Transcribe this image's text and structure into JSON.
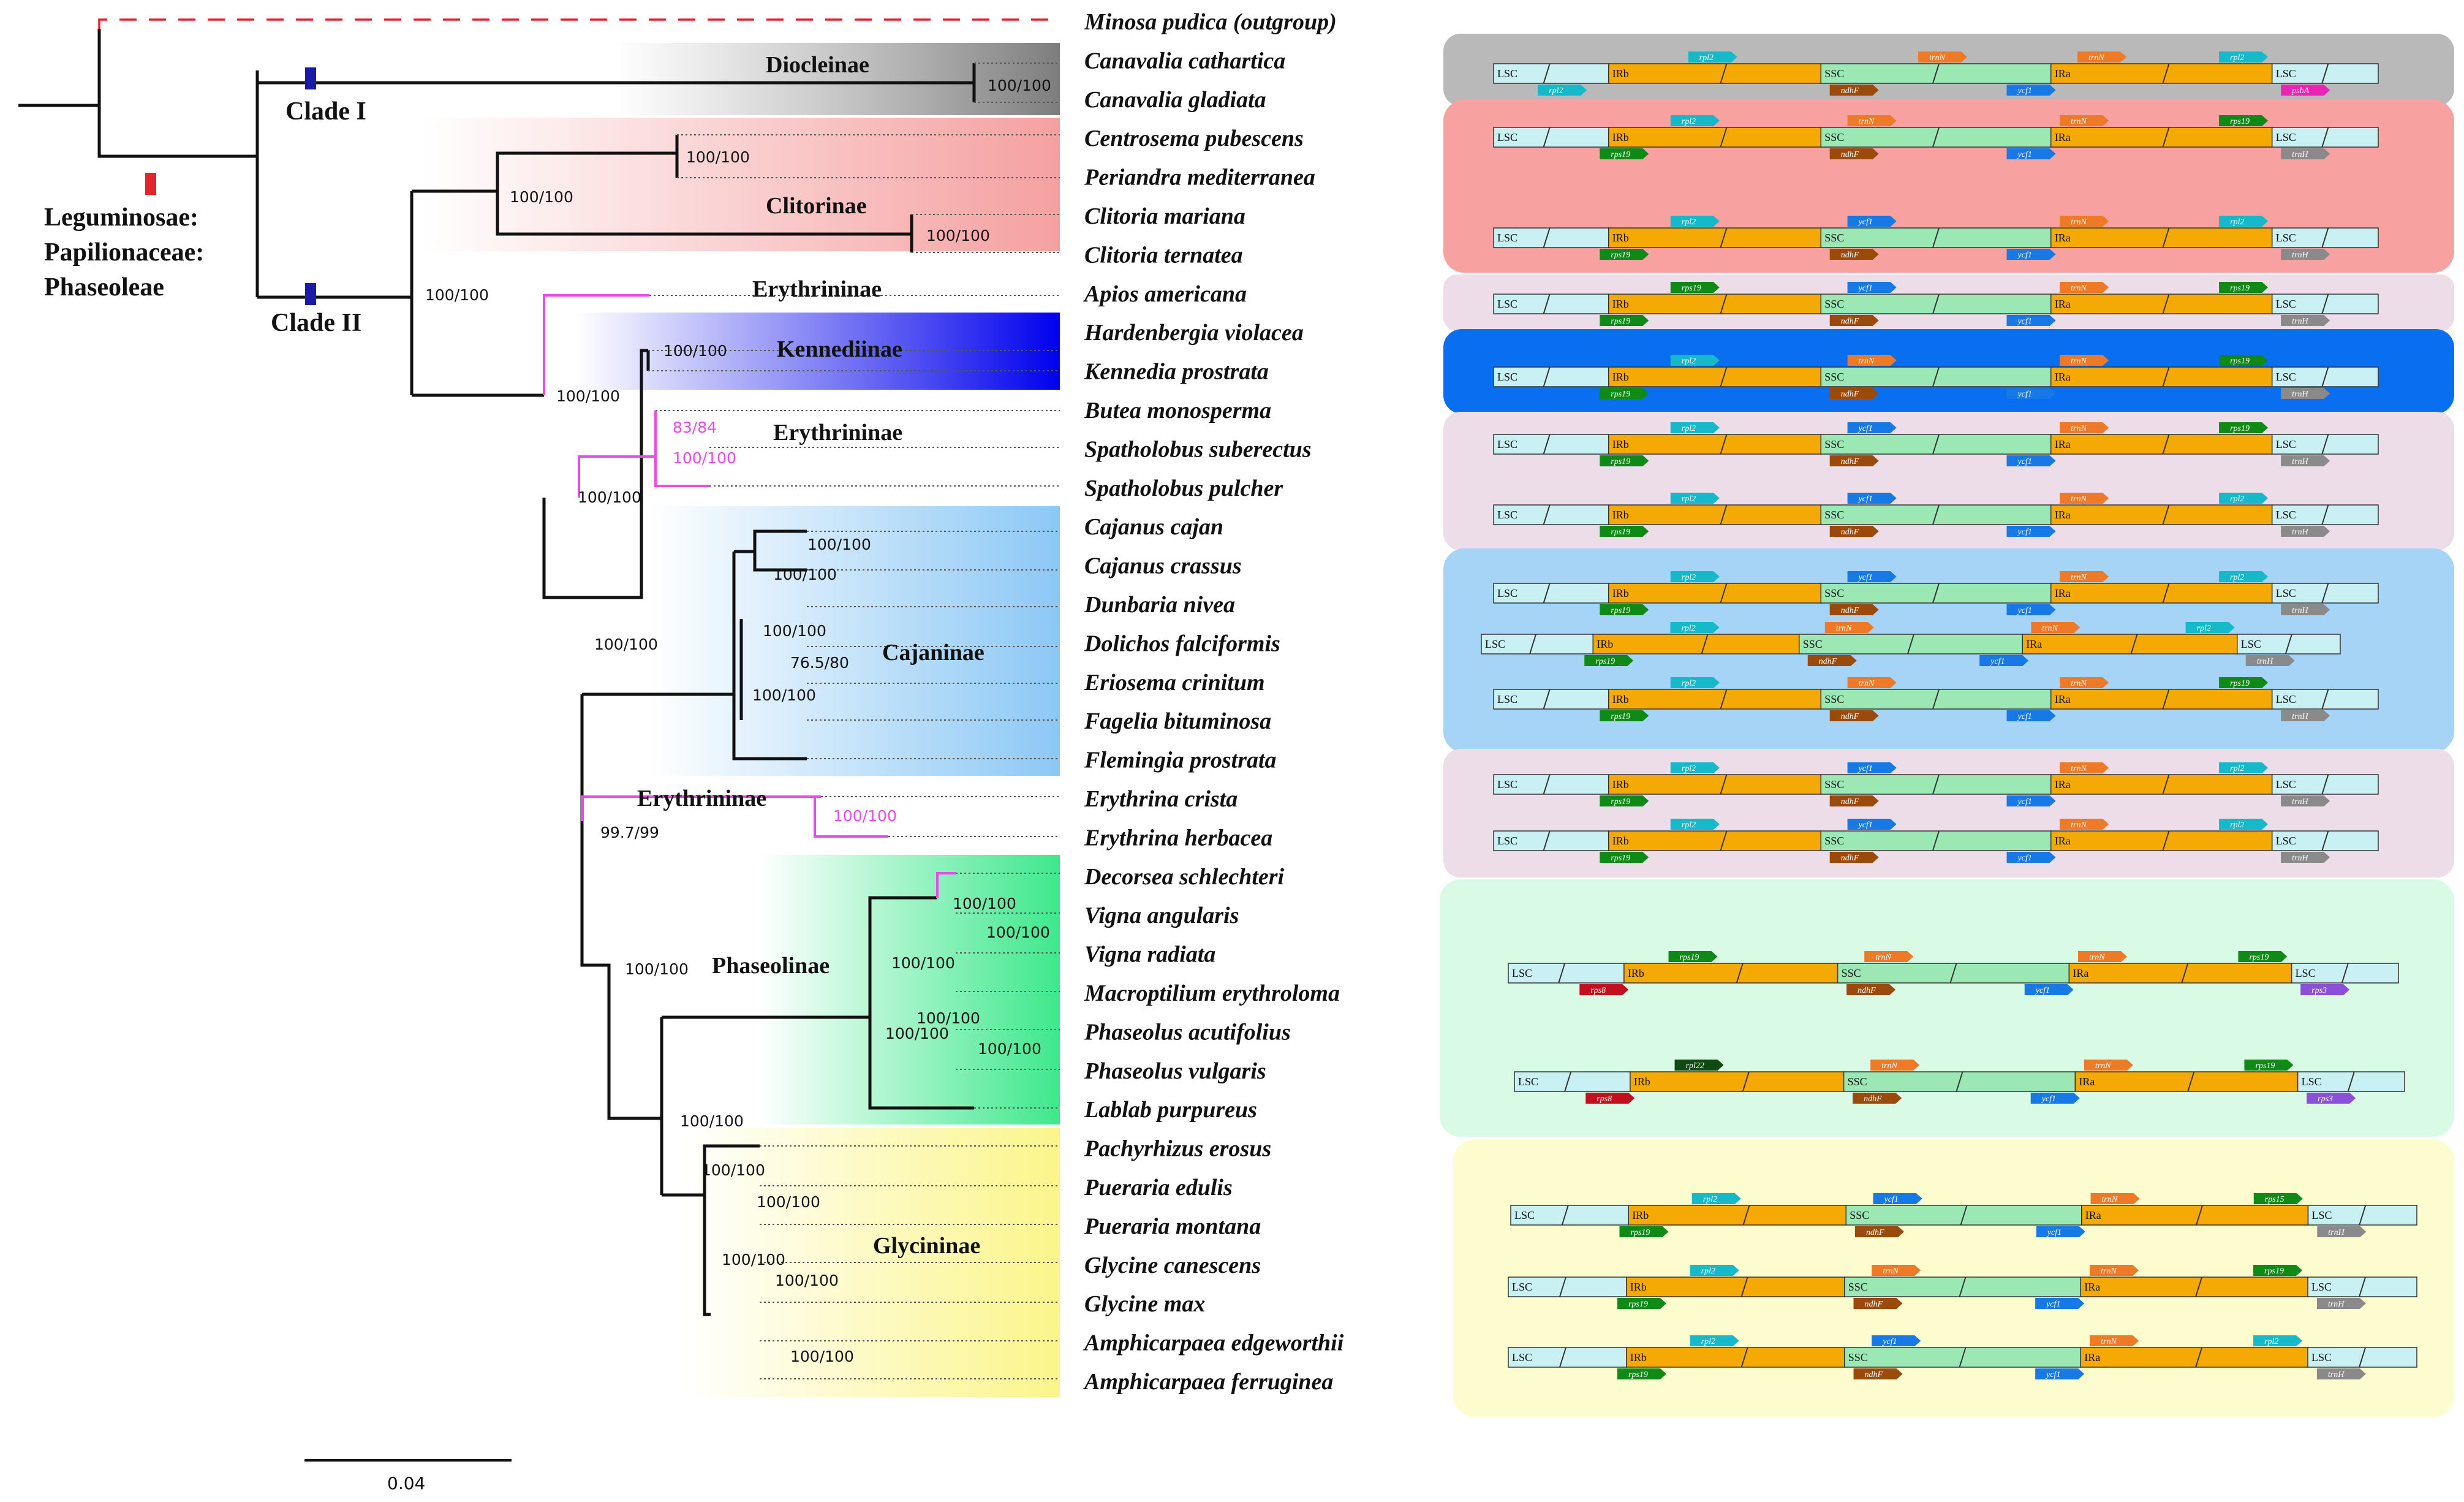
{
  "taxa": [
    "Minosa pudica (outgroup)",
    "Canavalia cathartica",
    "Canavalia gladiata",
    "Centrosema pubescens",
    "Periandra mediterranea",
    "Clitoria mariana",
    "Clitoria ternatea",
    "Apios americana",
    "Hardenbergia violacea",
    "Kennedia prostrata",
    "Butea monosperma",
    "Spatholobus suberectus",
    "Spatholobus pulcher",
    "Cajanus cajan",
    "Cajanus crassus",
    "Dunbaria nivea",
    "Dolichos falciformis",
    "Eriosema crinitum",
    "Fagelia bituminosa",
    "Flemingia prostrata",
    "Erythrina crista",
    "Erythrina herbacea",
    "Decorsea schlechteri",
    "Vigna angularis",
    "Vigna radiata",
    "Macroptilium erythroloma",
    "Phaseolus acutifolius",
    "Phaseolus vulgaris",
    "Lablab purpureus",
    "Pachyrhizus erosus",
    "Pueraria edulis",
    "Pueraria montana",
    "Glycine canescens",
    "Glycine max",
    "Amphicarpaea edgeworthii",
    "Amphicarpaea ferruginea"
  ],
  "root_label": {
    "line1": "Leguminosae:",
    "line2": "Papilionaceae:",
    "line3": "Phaseoleae"
  },
  "clades": {
    "clade1": "Clade I",
    "clade2": "Clade II"
  },
  "subtribes": {
    "diocleinae": "Diocleinae",
    "clitorinae": "Clitorinae",
    "erythrininae": "Erythrininae",
    "kennediinae": "Kennediinae",
    "cajaninae": "Cajaninae",
    "phaseolinae": "Phaseolinae",
    "glycininae": "Glycininae"
  },
  "supports": {
    "s1": "100/100",
    "s2": "100/100",
    "s3": "100/100",
    "s4": "100/100",
    "s5": "100/100",
    "s6": "100/100",
    "s7": "100/100",
    "s8": "83/84",
    "s9": "100/100",
    "s10": "100/100",
    "s11": "100/100",
    "s12": "100/100",
    "s13": "100/100",
    "s14": "100/100",
    "s15": "76.5/80",
    "s16": "100/100",
    "s17": "99.7/99",
    "s18": "100/100",
    "s19": "100/100",
    "s20": "100/100",
    "s21": "100/100",
    "s22": "100/100",
    "s23": "100/100",
    "s24": "100/100",
    "s25": "100/100",
    "s26": "100/100",
    "s27": "100/100",
    "s28": "100/100",
    "s29": "100/100",
    "s30": "100/100",
    "s31": "100/100"
  },
  "scale_bar": "0.04",
  "regions": {
    "lsc": "LSC",
    "irb": "IRb",
    "ssc": "SSC",
    "ira": "IRa"
  },
  "genes": {
    "rps19": "rps19",
    "rpl2": "rpl2",
    "trnN": "trnN",
    "ndhF": "ndhF",
    "ycf1": "ycf1",
    "trnH": "trnH",
    "psbA": "psbA",
    "rps8": "rps8",
    "rps3": "rps3",
    "rpl22": "rpl22",
    "rps15": "rps15"
  },
  "colors": {
    "diocleinae": "#b9b9b9",
    "clitorinae": "#f7a1a1",
    "erythrininae": "#ecdde9",
    "kennediinae": "#0a6ef0",
    "cajaninae": "#a6d4f6",
    "phaseolinae": "#d9fbe6",
    "glycininae": "#fdfccf",
    "irb": "#f5a905",
    "ssc": "#9be8b5",
    "lsc": "#c9f0f2",
    "magenta": "#e84ce8",
    "clade_marker": "#1a1aa6",
    "root_marker": "#e3242b"
  }
}
